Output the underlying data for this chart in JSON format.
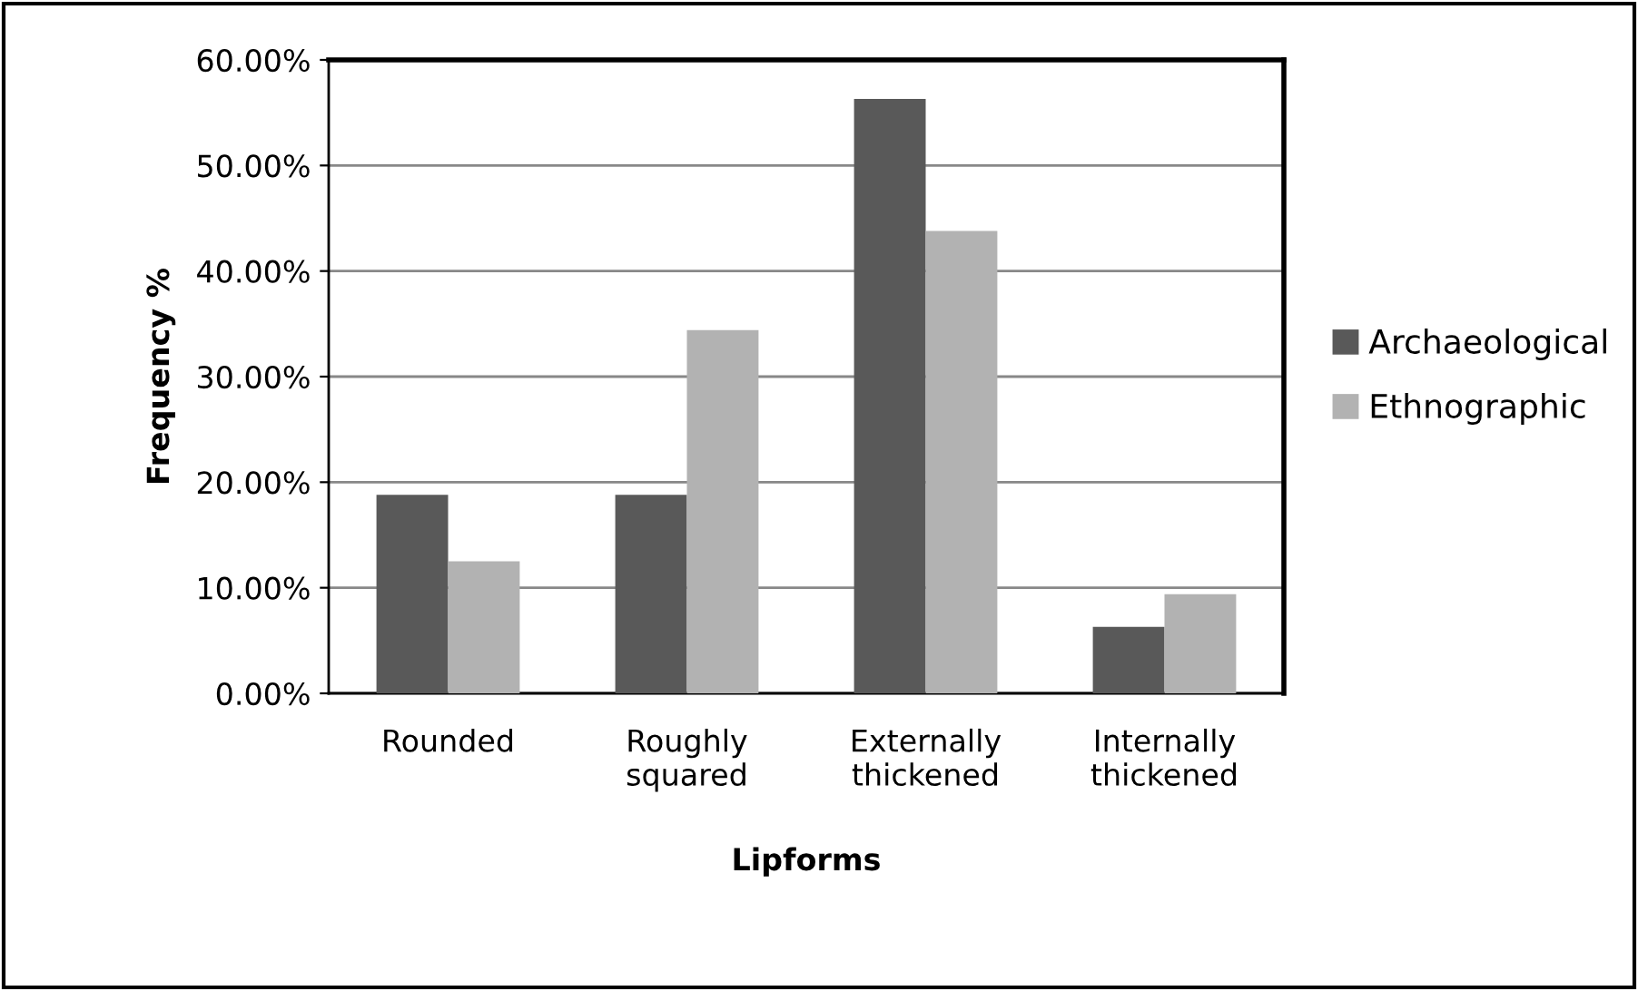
{
  "chart_data": {
    "type": "bar",
    "xlabel": "Lipforms",
    "ylabel": "Frequency %",
    "categories": [
      "Rounded",
      "Roughly\nsquared",
      "Externally\nthickened",
      "Internally\nthickened"
    ],
    "series": [
      {
        "name": "Archaeological",
        "color": "#595959",
        "values": [
          18.8,
          18.8,
          56.3,
          6.3
        ]
      },
      {
        "name": "Ethnographic",
        "color": "#b2b2b2",
        "values": [
          12.5,
          34.4,
          43.8,
          9.4
        ]
      }
    ],
    "ylim": [
      0,
      60
    ],
    "yticks": [
      {
        "value": 0,
        "label": "0.00%"
      },
      {
        "value": 10,
        "label": "10.00%"
      },
      {
        "value": 20,
        "label": "20.00%"
      },
      {
        "value": 30,
        "label": "30.00%"
      },
      {
        "value": 40,
        "label": "40.00%"
      },
      {
        "value": 50,
        "label": "50.00%"
      },
      {
        "value": 60,
        "label": "60.00%"
      }
    ],
    "grid": "y",
    "legend": "right"
  }
}
